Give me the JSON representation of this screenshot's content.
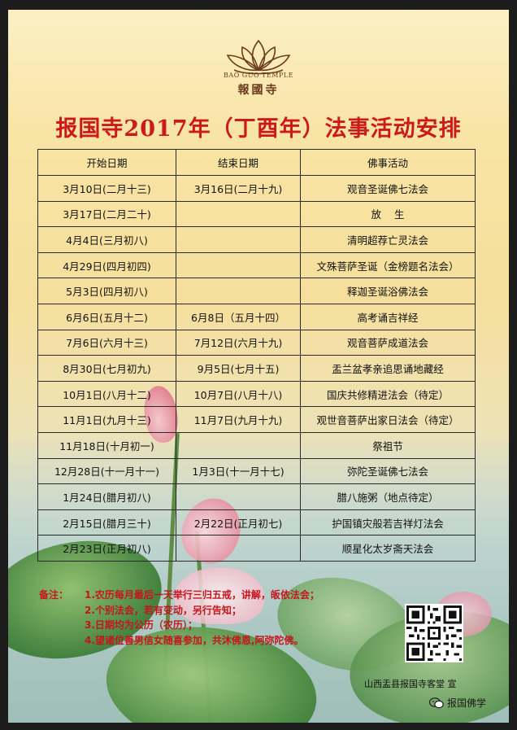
{
  "logo": {
    "english": "BAO GUO TEMPLE",
    "chinese": "報國寺"
  },
  "title": "报国寺2017年（丁酉年）法事活动安排",
  "table": {
    "headers": [
      "开始日期",
      "结束日期",
      "佛事活动"
    ],
    "rows": [
      [
        "3月10日(二月十三)",
        "3月16日(二月十九)",
        "观音圣诞佛七法会"
      ],
      [
        "3月17日(二月二十)",
        "",
        "放    生"
      ],
      [
        "4月4日(三月初八)",
        "",
        "清明超荐亡灵法会"
      ],
      [
        "4月29日(四月初四)",
        "",
        "文殊菩萨圣诞（金榜题名法会）"
      ],
      [
        "5月3日(四月初八)",
        "",
        "释迦圣诞浴佛法会"
      ],
      [
        "6月6日(五月十二)",
        "6月8日（五月十四）",
        "高考诵吉祥经"
      ],
      [
        "7月6日(六月十三)",
        "7月12日(六月十九)",
        "观音菩萨成道法会"
      ],
      [
        "8月30日(七月初九)",
        "9月5日(七月十五)",
        "盂兰盆孝亲追思诵地藏经"
      ],
      [
        "10月1日(八月十二)",
        "10月7日(八月十八)",
        "国庆共修精进法会（待定）"
      ],
      [
        "11月1日(九月十三)",
        "11月7日(九月十九)",
        "观世音菩萨出家日法会（待定）"
      ],
      [
        "11月18日(十月初一)",
        "",
        "祭祖节"
      ],
      [
        "12月28日(十一月十一)",
        "1月3日(十一月十七)",
        "弥陀圣诞佛七法会"
      ],
      [
        "1月24日(腊月初八)",
        "",
        "腊八施粥（地点待定）"
      ],
      [
        "2月15日(腊月三十)",
        "2月22日(正月初七)",
        "护国镇灾般若吉祥灯法会"
      ],
      [
        "2月23日(正月初八)",
        "",
        "顺星化太岁斋天法会"
      ]
    ]
  },
  "notes": {
    "label": "备注：",
    "lines": [
      "1.农历每月最后一天举行三归五戒，讲解，皈依法会；",
      "2.个别法会，若有变动，另行告知；",
      "3.日期均为公历（农历）；",
      "4.望诸位善男信女随喜参加，共沐佛恩,阿弥陀佛。"
    ]
  },
  "footer": "山西盂县报国寺客堂  宣",
  "watermark": "报国佛学",
  "colors": {
    "title": "#cc1a1a",
    "notes": "#c4161c",
    "logo": "#6b3a20"
  },
  "icons": [
    "lotus-logo-icon",
    "qr-code-icon",
    "wechat-icon"
  ]
}
